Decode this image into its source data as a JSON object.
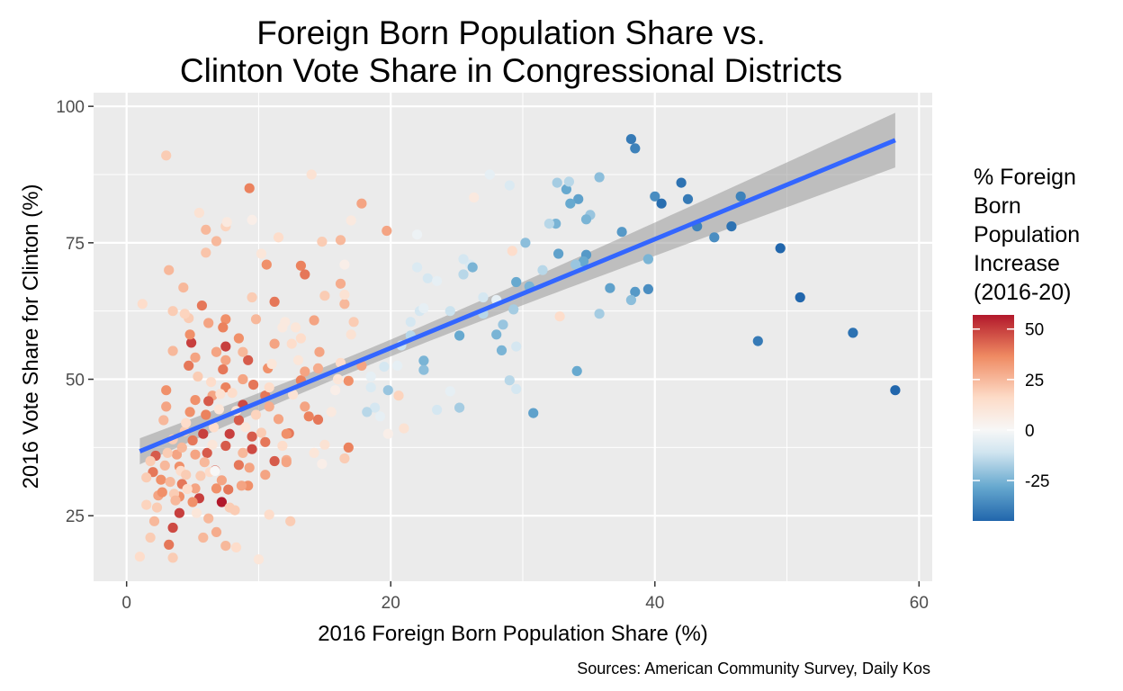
{
  "chart_data": {
    "type": "scatter",
    "title": [
      "Foreign Born Population Share vs.",
      "Clinton Vote Share in Congressional Districts"
    ],
    "xlabel": "2016 Foreign Born Population Share (%)",
    "ylabel": "2016 Vote Share for Clinton (%)",
    "caption": "Sources: American Community Survey, Daily Kos",
    "xlim": [
      -2.5,
      61
    ],
    "ylim": [
      13,
      102.5
    ],
    "x_ticks": [
      0,
      20,
      40,
      60
    ],
    "y_ticks": [
      25,
      50,
      75,
      100
    ],
    "grid": true,
    "panel_background": "#ebebeb",
    "color_legend": {
      "title": [
        "% Foreign",
        "Born",
        "Population",
        "Increase",
        "(2016-20)"
      ],
      "placement": "right",
      "ticks": [
        50,
        25,
        0,
        -25
      ],
      "range": [
        -45,
        57
      ],
      "colors": {
        "high": "#b2182b",
        "mid_high": "#ef8a62",
        "mid_low_high": "#fddbc7",
        "zero": "#f7f7f7",
        "mid_low": "#d1e5f0",
        "low_mid": "#67a9cf",
        "low": "#2166ac"
      }
    },
    "trend_line": {
      "method": "linear",
      "color": "#3366ff",
      "x": [
        1,
        58.2
      ],
      "y": [
        36.8,
        93.8
      ],
      "ci_halfwidth_at_x": [
        1.5,
        5.0
      ],
      "ci_color": "#999999"
    },
    "points": [
      [
        38.2,
        94,
        -40
      ],
      [
        38.5,
        92.3,
        -38
      ],
      [
        42,
        86,
        -42
      ],
      [
        40,
        83.5,
        -35
      ],
      [
        40.5,
        82.2,
        -43
      ],
      [
        42.5,
        83,
        -40
      ],
      [
        46.5,
        83.5,
        -38
      ],
      [
        43.2,
        78,
        -38
      ],
      [
        44.5,
        76,
        -35
      ],
      [
        45.8,
        78,
        -42
      ],
      [
        49.5,
        74,
        -45
      ],
      [
        51,
        65,
        -48
      ],
      [
        47.8,
        57,
        -40
      ],
      [
        55,
        58.5,
        -42
      ],
      [
        58.2,
        48,
        -46
      ],
      [
        37.5,
        77,
        -32
      ],
      [
        39.5,
        72,
        -25
      ],
      [
        39.5,
        66.5,
        -35
      ],
      [
        38.5,
        66,
        -32
      ],
      [
        38.2,
        64.5,
        -22
      ],
      [
        36.6,
        66.7,
        -30
      ],
      [
        35.8,
        62,
        -18
      ],
      [
        34.1,
        51.5,
        -28
      ],
      [
        30.8,
        43.8,
        -30
      ],
      [
        34.5,
        70.5,
        -20
      ],
      [
        34.8,
        72.8,
        -32
      ],
      [
        34.6,
        71.6,
        -28
      ],
      [
        34,
        71,
        -20
      ],
      [
        32.7,
        73,
        -30
      ],
      [
        34.2,
        83,
        -30
      ],
      [
        33.3,
        84.8,
        -28
      ],
      [
        33.6,
        82.2,
        -28
      ],
      [
        35.1,
        80.1,
        -20
      ],
      [
        34.8,
        79.3,
        -25
      ],
      [
        32.5,
        78.5,
        -25
      ],
      [
        32,
        78.5,
        -15
      ],
      [
        32.6,
        86,
        -18
      ],
      [
        33.5,
        86.2,
        -15
      ],
      [
        35.8,
        87,
        -22
      ],
      [
        30.2,
        75,
        -22
      ],
      [
        29.5,
        67.8,
        -28
      ],
      [
        30.5,
        67,
        -25
      ],
      [
        31.5,
        70,
        -15
      ],
      [
        28.5,
        60,
        -20
      ],
      [
        29.3,
        62.8,
        -18
      ],
      [
        28,
        58.2,
        -25
      ],
      [
        28.4,
        55.3,
        -25
      ],
      [
        29,
        49.8,
        -15
      ],
      [
        29.5,
        48.2,
        -10
      ],
      [
        29.5,
        56,
        -10
      ],
      [
        27,
        62,
        -15
      ],
      [
        27,
        65,
        -10
      ],
      [
        28,
        64.5,
        -5
      ],
      [
        25.2,
        58,
        -28
      ],
      [
        24.5,
        62.5,
        -12
      ],
      [
        25.5,
        69.2,
        -15
      ],
      [
        26,
        71,
        -8
      ],
      [
        26.2,
        70.5,
        -25
      ],
      [
        25.5,
        72,
        -10
      ],
      [
        26.3,
        83.3,
        8
      ],
      [
        27.5,
        87.5,
        -5
      ],
      [
        29,
        85.5,
        -8
      ],
      [
        29.2,
        73.5,
        15
      ],
      [
        32.8,
        61.5,
        15
      ],
      [
        22.5,
        53.4,
        -25
      ],
      [
        22.5,
        51.7,
        -22
      ],
      [
        23.5,
        44.4,
        -10
      ],
      [
        25.2,
        44.8,
        -18
      ],
      [
        24.5,
        47.8,
        -5
      ],
      [
        22.2,
        62.5,
        -10
      ],
      [
        22.5,
        63,
        -5
      ],
      [
        22,
        70.5,
        -8
      ],
      [
        22,
        76.5,
        -3
      ],
      [
        22.8,
        68.5,
        -10
      ],
      [
        23.5,
        68,
        -5
      ],
      [
        21.5,
        58,
        -15
      ],
      [
        21.5,
        60.5,
        -10
      ],
      [
        20.8,
        56.2,
        -12
      ],
      [
        20.5,
        52.5,
        -5
      ],
      [
        19.8,
        48,
        -20
      ],
      [
        20.6,
        47,
        18
      ],
      [
        21,
        41,
        12
      ],
      [
        19.8,
        40,
        5
      ],
      [
        19.2,
        43.2,
        -5
      ],
      [
        18.8,
        44.8,
        -10
      ],
      [
        18.2,
        44,
        -15
      ],
      [
        18.5,
        48.5,
        -8
      ],
      [
        19.5,
        52.3,
        -10
      ],
      [
        18.5,
        50.5,
        -5
      ],
      [
        19.7,
        77.2,
        30
      ],
      [
        17.8,
        82.2,
        30
      ],
      [
        17.2,
        60.5,
        20
      ],
      [
        17,
        58.2,
        12
      ],
      [
        16.8,
        49.7,
        35
      ],
      [
        17.8,
        52.5,
        30
      ],
      [
        16.8,
        37.5,
        38
      ],
      [
        16.5,
        35.5,
        20
      ],
      [
        16.2,
        53,
        15
      ],
      [
        16,
        50,
        10
      ],
      [
        16.5,
        63.8,
        25
      ],
      [
        16.2,
        67.5,
        28
      ],
      [
        16.5,
        65.5,
        12
      ],
      [
        16.2,
        75.5,
        25
      ],
      [
        17,
        79.1,
        8
      ],
      [
        16.5,
        71,
        5
      ],
      [
        14,
        87.5,
        12
      ],
      [
        13.2,
        70.8,
        38
      ],
      [
        13.5,
        69.2,
        40
      ],
      [
        14.8,
        75.2,
        20
      ],
      [
        15,
        65.3,
        20
      ],
      [
        14.2,
        60.8,
        30
      ],
      [
        14.6,
        55,
        30
      ],
      [
        14.5,
        52,
        28
      ],
      [
        14.5,
        42.6,
        40
      ],
      [
        13.8,
        43.2,
        38
      ],
      [
        13.5,
        45,
        30
      ],
      [
        13.2,
        49.8,
        38
      ],
      [
        13.5,
        51.4,
        30
      ],
      [
        12.5,
        56.5,
        15
      ],
      [
        12.8,
        59.5,
        10
      ],
      [
        12,
        60.5,
        8
      ],
      [
        12.3,
        40.1,
        40
      ],
      [
        12.1,
        40,
        35
      ],
      [
        12.1,
        35.2,
        28
      ],
      [
        12.1,
        34.8,
        30
      ],
      [
        12.4,
        24,
        20
      ],
      [
        11.8,
        37.8,
        15
      ],
      [
        11.5,
        42.7,
        30
      ],
      [
        11.2,
        35,
        45
      ],
      [
        10.8,
        25.2,
        15
      ],
      [
        10.5,
        38.5,
        40
      ],
      [
        10.8,
        45,
        28
      ],
      [
        10.5,
        47,
        40
      ],
      [
        10.7,
        52,
        35
      ],
      [
        11.2,
        56.5,
        30
      ],
      [
        11.2,
        64.2,
        40
      ],
      [
        10.6,
        71,
        35
      ],
      [
        10.2,
        73,
        10
      ],
      [
        11.5,
        76,
        15
      ],
      [
        11.8,
        59.5,
        8
      ],
      [
        9.8,
        61,
        25
      ],
      [
        9.5,
        65,
        20
      ],
      [
        10,
        17,
        10
      ],
      [
        9.3,
        85,
        38
      ],
      [
        9.5,
        79.2,
        5
      ],
      [
        9.2,
        53.5,
        45
      ],
      [
        9.6,
        49,
        40
      ],
      [
        9.5,
        39.5,
        45
      ],
      [
        9.5,
        37.2,
        48
      ],
      [
        9.3,
        33.8,
        30
      ],
      [
        9.2,
        30.5,
        35
      ],
      [
        8.8,
        36.5,
        25
      ],
      [
        8.5,
        34.3,
        40
      ],
      [
        8.3,
        19.2,
        15
      ],
      [
        8.2,
        26,
        20
      ],
      [
        8.5,
        42.5,
        45
      ],
      [
        8.8,
        45.3,
        48
      ],
      [
        8.8,
        50,
        30
      ],
      [
        8.8,
        55,
        25
      ],
      [
        8.5,
        57.5,
        35
      ],
      [
        7.5,
        61,
        35
      ],
      [
        7.3,
        59.5,
        38
      ],
      [
        7.5,
        78,
        18
      ],
      [
        7.6,
        78.8,
        8
      ],
      [
        6.8,
        75.3,
        25
      ],
      [
        6,
        77.4,
        25
      ],
      [
        6,
        73.2,
        22
      ],
      [
        5.5,
        80.5,
        12
      ],
      [
        5.7,
        63.5,
        40
      ],
      [
        6.2,
        60.3,
        30
      ],
      [
        6.8,
        55,
        25
      ],
      [
        6.8,
        55,
        30
      ],
      [
        7.5,
        56,
        50
      ],
      [
        7.5,
        53.5,
        30
      ],
      [
        7.3,
        51.8,
        40
      ],
      [
        7.5,
        48.5,
        38
      ],
      [
        6.5,
        47,
        30
      ],
      [
        6,
        43.5,
        38
      ],
      [
        6.2,
        46,
        45
      ],
      [
        5.8,
        40,
        50
      ],
      [
        6.1,
        36.5,
        45
      ],
      [
        6.7,
        33.3,
        45
      ],
      [
        7.5,
        37.8,
        45
      ],
      [
        7.8,
        40,
        50
      ],
      [
        7.2,
        27.5,
        57
      ],
      [
        6.8,
        30,
        35
      ],
      [
        7.2,
        31.5,
        30
      ],
      [
        7.7,
        29.8,
        40
      ],
      [
        7.8,
        26.5,
        20
      ],
      [
        7.5,
        19.5,
        25
      ],
      [
        6.8,
        22,
        28
      ],
      [
        6.2,
        24.5,
        25
      ],
      [
        5.8,
        21,
        25
      ],
      [
        5.5,
        28.2,
        50
      ],
      [
        5.2,
        30,
        30
      ],
      [
        5,
        27.5,
        35
      ],
      [
        5.2,
        36.2,
        30
      ],
      [
        5,
        38.8,
        40
      ],
      [
        4.8,
        44,
        35
      ],
      [
        5.2,
        46.2,
        35
      ],
      [
        4.9,
        56.7,
        50
      ],
      [
        4.7,
        52.5,
        40
      ],
      [
        5.2,
        54,
        30
      ],
      [
        4.8,
        58.2,
        35
      ],
      [
        4.7,
        61.2,
        20
      ],
      [
        4.3,
        66.8,
        25
      ],
      [
        4.4,
        62,
        18
      ],
      [
        3.5,
        62.5,
        20
      ],
      [
        3.2,
        70,
        25
      ],
      [
        3,
        91,
        20
      ],
      [
        3.5,
        55.2,
        25
      ],
      [
        3,
        45,
        30
      ],
      [
        2.8,
        42.5,
        25
      ],
      [
        3.5,
        39,
        20
      ],
      [
        3.8,
        36.2,
        30
      ],
      [
        4,
        34,
        35
      ],
      [
        4.2,
        30.8,
        40
      ],
      [
        4,
        28.5,
        35
      ],
      [
        4,
        25.5,
        50
      ],
      [
        3.5,
        22.8,
        48
      ],
      [
        3.2,
        19.7,
        40
      ],
      [
        3.5,
        17.3,
        20
      ],
      [
        2.2,
        36,
        45
      ],
      [
        2,
        33,
        40
      ],
      [
        2.4,
        28.7,
        30
      ],
      [
        2.3,
        26.5,
        20
      ],
      [
        2.1,
        24,
        25
      ],
      [
        1.8,
        21,
        20
      ],
      [
        1.5,
        27,
        18
      ],
      [
        1,
        17.5,
        15
      ],
      [
        1.2,
        63.8,
        15
      ],
      [
        1.8,
        35,
        20
      ],
      [
        1.5,
        32,
        20
      ],
      [
        2.7,
        29.3,
        35
      ],
      [
        2.6,
        31.6,
        35
      ],
      [
        2.9,
        34.2,
        25
      ],
      [
        3.1,
        36.5,
        20
      ],
      [
        3.3,
        31.2,
        25
      ],
      [
        3.6,
        29,
        20
      ],
      [
        3.7,
        27.8,
        25
      ],
      [
        4.1,
        33.2,
        15
      ],
      [
        4.5,
        32.5,
        20
      ],
      [
        4.6,
        29.9,
        15
      ],
      [
        4.2,
        37.5,
        25
      ],
      [
        4.4,
        40.5,
        20
      ],
      [
        4.5,
        42,
        15
      ],
      [
        5.6,
        32.3,
        20
      ],
      [
        5.9,
        34.8,
        25
      ],
      [
        6.3,
        33,
        15
      ],
      [
        6.5,
        38,
        10
      ],
      [
        6.6,
        41.2,
        15
      ],
      [
        7,
        44.5,
        10
      ],
      [
        7.1,
        47.3,
        12
      ],
      [
        6.4,
        49.5,
        15
      ],
      [
        5.4,
        50.5,
        20
      ],
      [
        8,
        47.5,
        15
      ],
      [
        8.3,
        44.2,
        12
      ],
      [
        9,
        41.2,
        10
      ],
      [
        9.8,
        43.5,
        18
      ],
      [
        10.2,
        40.2,
        20
      ],
      [
        10.8,
        48.5,
        15
      ],
      [
        11,
        52.8,
        10
      ],
      [
        12.6,
        47.2,
        12
      ],
      [
        13,
        53.5,
        10
      ],
      [
        13.2,
        57.5,
        15
      ],
      [
        14.2,
        36.5,
        10
      ],
      [
        15,
        38,
        12
      ],
      [
        15.5,
        44,
        8
      ],
      [
        15.8,
        48,
        5
      ],
      [
        14.8,
        34.5,
        5
      ],
      [
        6.7,
        33.2,
        0
      ],
      [
        5.3,
        25.5,
        10
      ],
      [
        8.7,
        30.5,
        30
      ],
      [
        3,
        48,
        35
      ],
      [
        10.5,
        32.5,
        30
      ]
    ]
  }
}
